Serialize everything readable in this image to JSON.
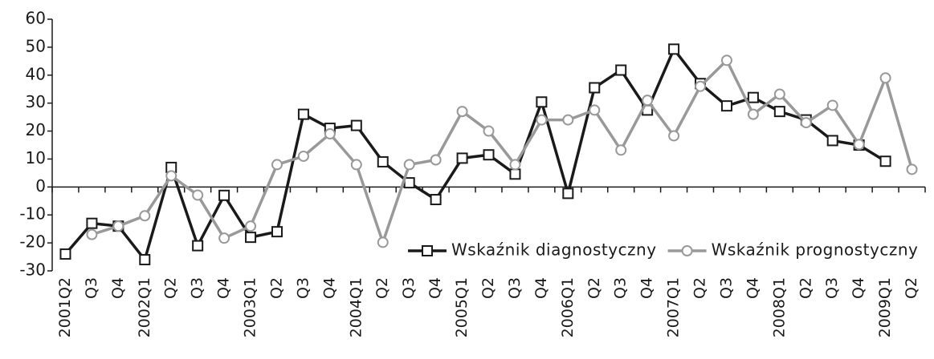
{
  "chart_data": {
    "type": "line",
    "categories": [
      "2001Q2",
      "Q3",
      "Q4",
      "2002Q1",
      "Q2",
      "Q3",
      "Q4",
      "2003Q1",
      "Q2",
      "Q3",
      "Q4",
      "2004Q1",
      "Q2",
      "Q3",
      "Q4",
      "2005Q1",
      "Q2",
      "Q3",
      "Q4",
      "2006Q1",
      "Q2",
      "Q3",
      "Q4",
      "2007Q1",
      "Q2",
      "Q3",
      "Q4",
      "2008Q1",
      "Q2",
      "Q3",
      "Q4",
      "2009Q1",
      "Q2"
    ],
    "series": [
      {
        "name": "Wskaźnik diagnostyczny",
        "color": "#1a1a1a",
        "marker": "square",
        "values": [
          -24,
          -13,
          -14,
          -26,
          7,
          -21,
          -3,
          -18,
          -16,
          26,
          21,
          22,
          9,
          1.5,
          -4.5,
          10.3,
          11.5,
          4.6,
          30.4,
          -2.3,
          35.5,
          41.8,
          27.5,
          49.3,
          37,
          29,
          32,
          27,
          24,
          16.6,
          15,
          9.2,
          null
        ]
      },
      {
        "name": "Wskaźnik prognostyczny",
        "color": "#999999",
        "marker": "circle",
        "values": [
          null,
          -17,
          -14,
          -10.3,
          4,
          -2.9,
          -18.3,
          -14,
          8,
          11,
          19,
          8,
          -19.8,
          8,
          9.7,
          27,
          20,
          8,
          24,
          24,
          27.5,
          13.2,
          31,
          18.3,
          36,
          45.3,
          26,
          33.2,
          23,
          29.2,
          15.2,
          39,
          6.3
        ]
      }
    ],
    "ylim": [
      -30,
      60
    ],
    "yticks": [
      -30,
      -20,
      -10,
      0,
      10,
      20,
      30,
      40,
      50,
      60
    ],
    "grid": false,
    "legend": "lower right"
  }
}
